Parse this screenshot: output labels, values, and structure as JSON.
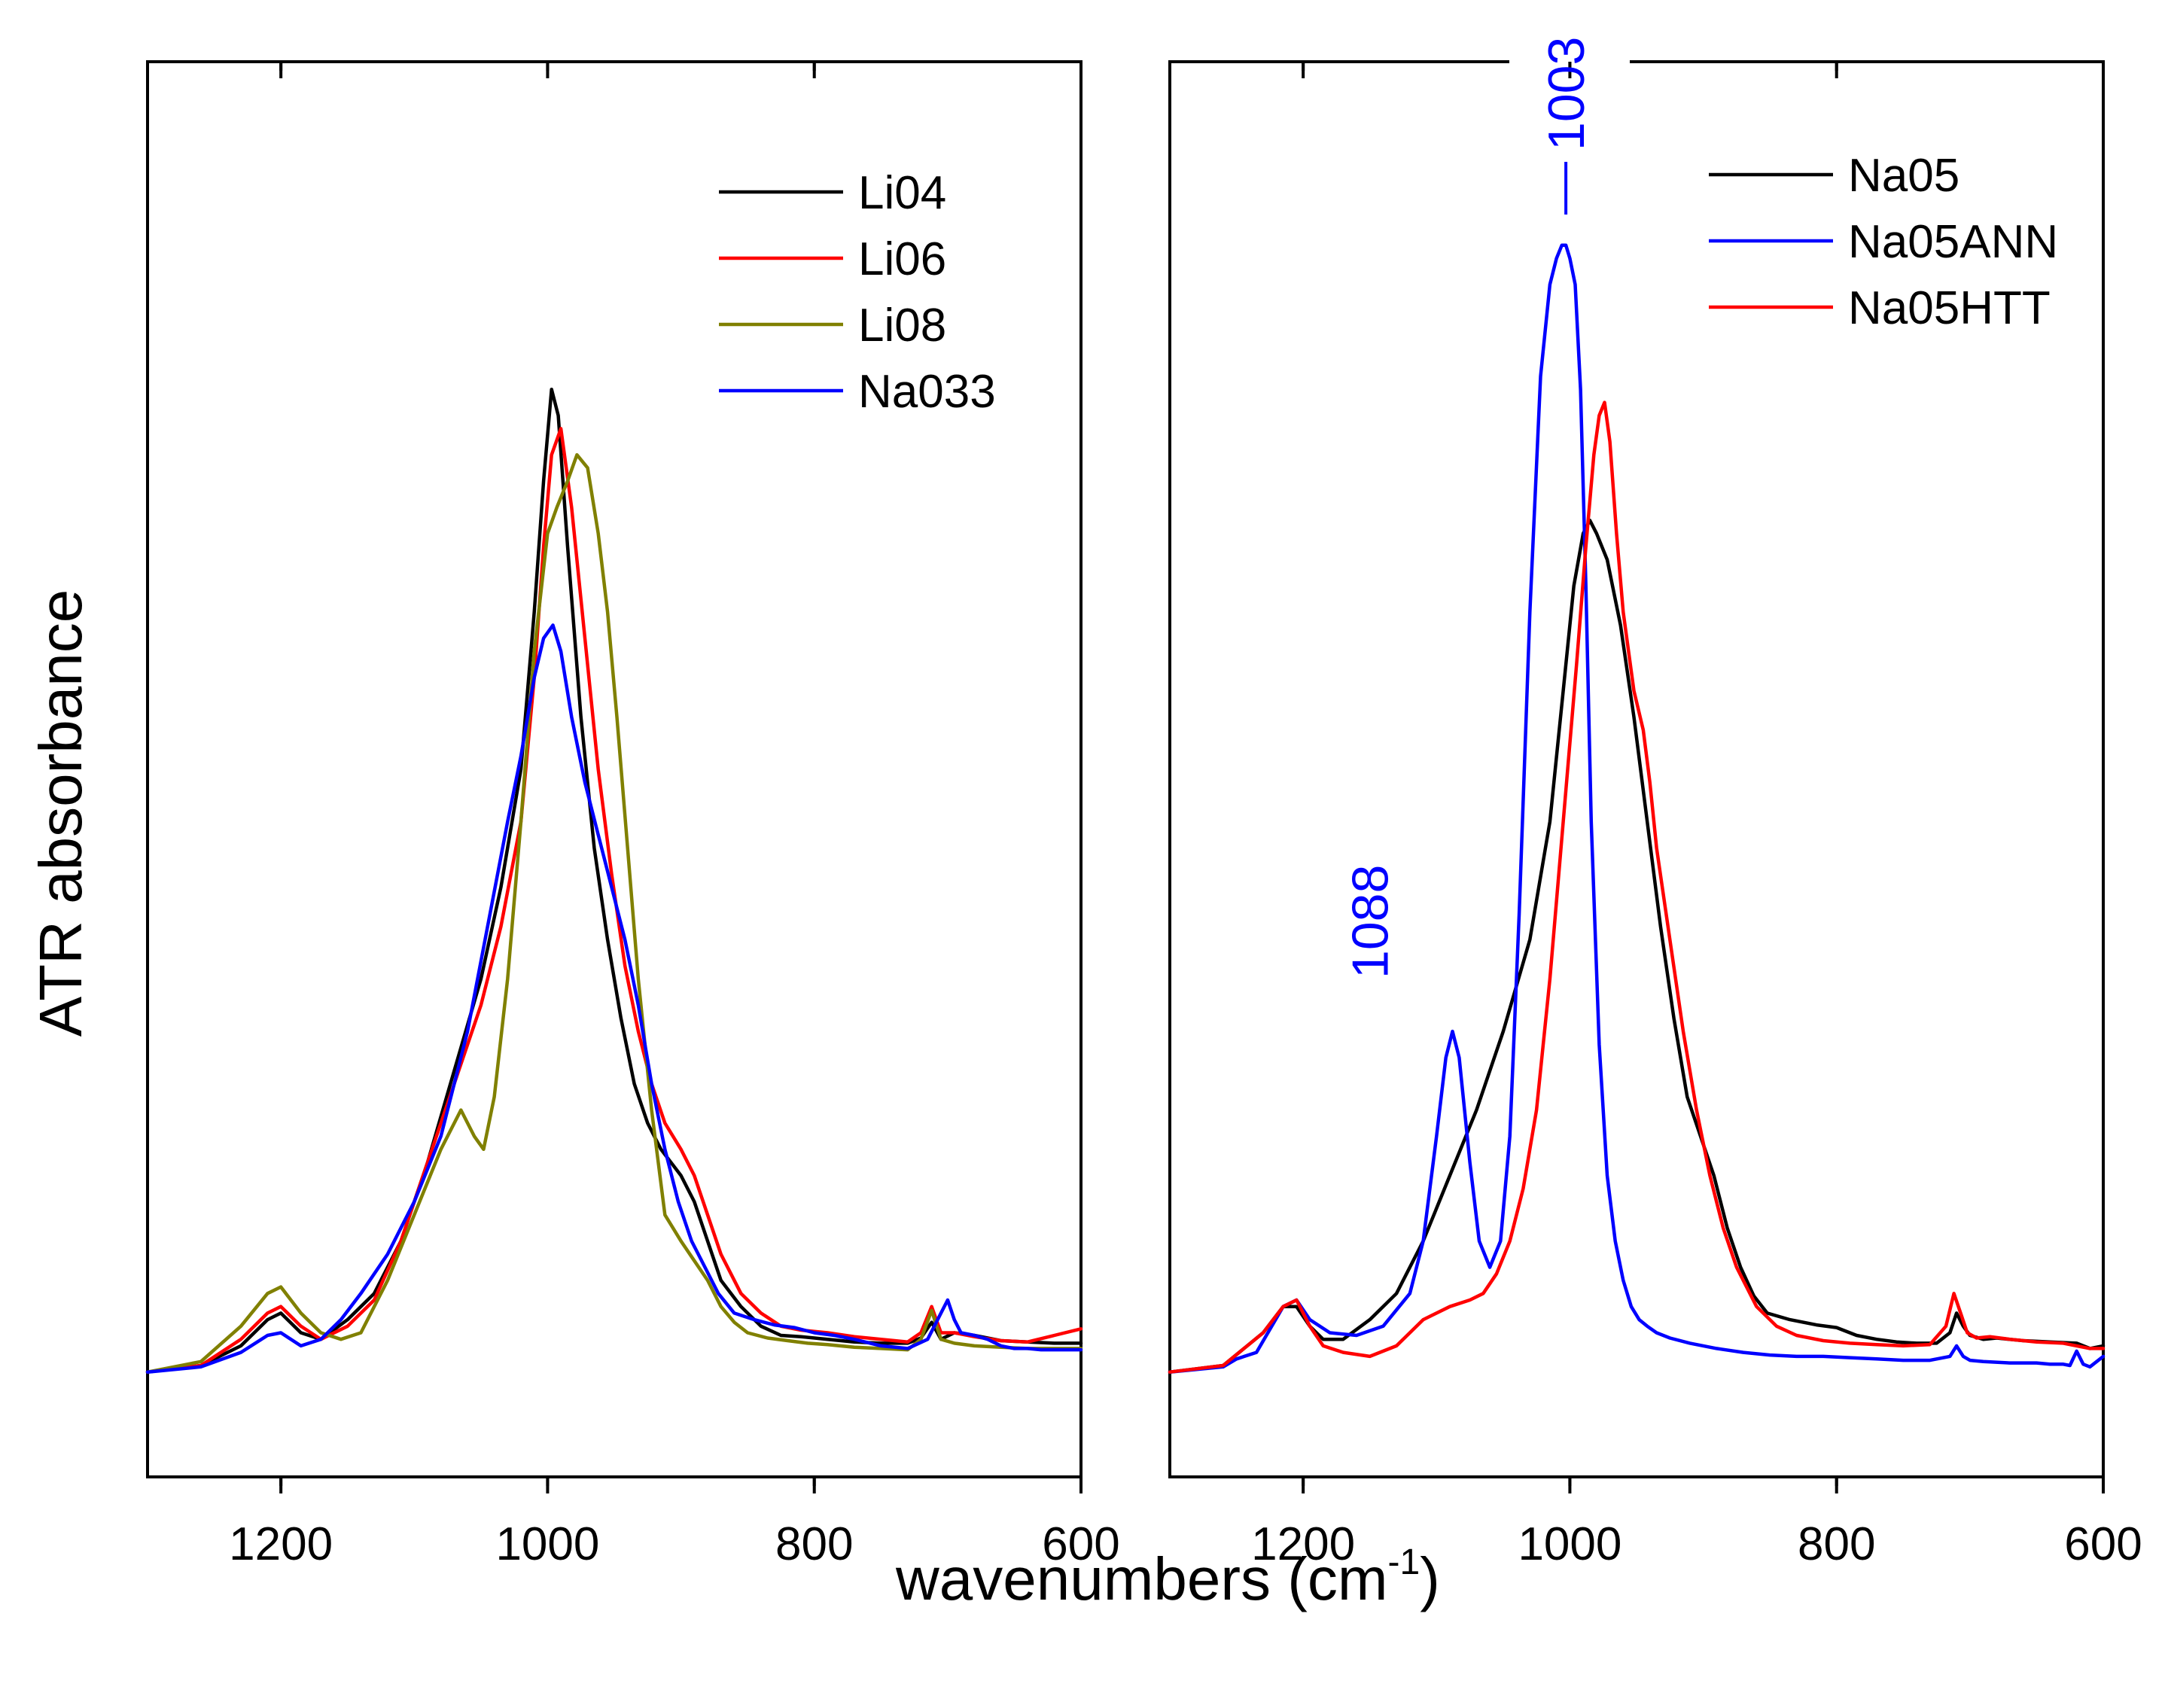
{
  "figure": {
    "ylabel": "ATR absorbance",
    "xlabel_main": "wavenumbers (cm",
    "xlabel_sup": "-1",
    "xlabel_close": ")"
  },
  "chart_data": [
    {
      "type": "line",
      "panel": "left",
      "xlim": [
        1300,
        600
      ],
      "ylim": [
        -0.08,
        1.0
      ],
      "xticks": [
        1200,
        1000,
        800,
        600
      ],
      "xtick_labels": [
        "1200",
        "1000",
        "800",
        "600"
      ],
      "yticks_shown": false,
      "legend": "top-right",
      "series": [
        {
          "name": "Li04",
          "color": "#000000",
          "x": [
            1300,
            1260,
            1230,
            1210,
            1200,
            1185,
            1170,
            1150,
            1130,
            1110,
            1090,
            1070,
            1050,
            1035,
            1020,
            1010,
            1003,
            997,
            992,
            985,
            975,
            965,
            955,
            945,
            935,
            925,
            915,
            900,
            890,
            880,
            870,
            855,
            840,
            825,
            810,
            790,
            770,
            750,
            730,
            720,
            712,
            705,
            695,
            680,
            660,
            640,
            620,
            600
          ],
          "y": [
            0,
            0.005,
            0.02,
            0.04,
            0.045,
            0.03,
            0.025,
            0.04,
            0.06,
            0.1,
            0.16,
            0.23,
            0.3,
            0.37,
            0.46,
            0.58,
            0.68,
            0.75,
            0.73,
            0.63,
            0.5,
            0.4,
            0.33,
            0.27,
            0.22,
            0.19,
            0.17,
            0.15,
            0.13,
            0.1,
            0.07,
            0.05,
            0.035,
            0.028,
            0.027,
            0.025,
            0.023,
            0.022,
            0.022,
            0.026,
            0.038,
            0.025,
            0.03,
            0.028,
            0.024,
            0.023,
            0.022,
            0.022
          ]
        },
        {
          "name": "Li06",
          "color": "#ff0000",
          "x": [
            1300,
            1260,
            1230,
            1210,
            1200,
            1185,
            1170,
            1150,
            1130,
            1110,
            1090,
            1070,
            1050,
            1035,
            1020,
            1010,
            1003,
            997,
            990,
            982,
            972,
            962,
            952,
            942,
            932,
            922,
            912,
            900,
            890,
            880,
            870,
            855,
            840,
            825,
            810,
            790,
            770,
            750,
            730,
            720,
            712,
            705,
            695,
            680,
            660,
            640,
            620,
            600
          ],
          "y": [
            0,
            0.005,
            0.025,
            0.045,
            0.05,
            0.035,
            0.025,
            0.035,
            0.055,
            0.1,
            0.16,
            0.22,
            0.28,
            0.34,
            0.42,
            0.53,
            0.63,
            0.7,
            0.72,
            0.66,
            0.56,
            0.46,
            0.38,
            0.31,
            0.26,
            0.22,
            0.19,
            0.17,
            0.15,
            0.12,
            0.09,
            0.06,
            0.045,
            0.035,
            0.032,
            0.03,
            0.027,
            0.025,
            0.023,
            0.03,
            0.05,
            0.03,
            0.03,
            0.027,
            0.024,
            0.023,
            0.028,
            0.033
          ]
        },
        {
          "name": "Li08",
          "color": "#808000",
          "x": [
            1300,
            1260,
            1230,
            1210,
            1200,
            1185,
            1170,
            1155,
            1140,
            1120,
            1100,
            1080,
            1065,
            1055,
            1048,
            1040,
            1030,
            1020,
            1010,
            1000,
            993,
            985,
            978,
            970,
            962,
            955,
            948,
            940,
            932,
            922,
            912,
            900,
            890,
            880,
            870,
            860,
            850,
            835,
            820,
            805,
            790,
            770,
            750,
            730,
            720,
            712,
            705,
            695,
            680,
            660,
            640,
            620,
            600
          ],
          "y": [
            0,
            0.008,
            0.035,
            0.06,
            0.065,
            0.045,
            0.03,
            0.025,
            0.03,
            0.07,
            0.12,
            0.17,
            0.2,
            0.18,
            0.17,
            0.21,
            0.3,
            0.42,
            0.55,
            0.64,
            0.66,
            0.68,
            0.7,
            0.69,
            0.64,
            0.58,
            0.5,
            0.4,
            0.3,
            0.2,
            0.12,
            0.1,
            0.085,
            0.07,
            0.05,
            0.038,
            0.03,
            0.026,
            0.024,
            0.022,
            0.021,
            0.019,
            0.018,
            0.017,
            0.025,
            0.047,
            0.025,
            0.022,
            0.02,
            0.019,
            0.018,
            0.018,
            0.018
          ]
        },
        {
          "name": "Na033",
          "color": "#0000ff",
          "x": [
            1300,
            1260,
            1230,
            1210,
            1200,
            1185,
            1170,
            1155,
            1140,
            1120,
            1100,
            1080,
            1060,
            1045,
            1030,
            1020,
            1010,
            1003,
            996,
            990,
            982,
            972,
            962,
            952,
            942,
            932,
            922,
            912,
            902,
            892,
            882,
            872,
            860,
            845,
            830,
            815,
            800,
            785,
            770,
            750,
            730,
            715,
            705,
            700,
            695,
            690,
            680,
            670,
            660,
            650,
            640,
            630,
            620,
            610,
            600
          ],
          "y": [
            0,
            0.004,
            0.015,
            0.028,
            0.03,
            0.02,
            0.025,
            0.04,
            0.06,
            0.09,
            0.13,
            0.18,
            0.26,
            0.34,
            0.42,
            0.47,
            0.53,
            0.56,
            0.57,
            0.55,
            0.5,
            0.45,
            0.41,
            0.37,
            0.33,
            0.28,
            0.22,
            0.17,
            0.13,
            0.1,
            0.08,
            0.06,
            0.045,
            0.04,
            0.036,
            0.034,
            0.03,
            0.028,
            0.025,
            0.02,
            0.018,
            0.025,
            0.045,
            0.055,
            0.04,
            0.03,
            0.028,
            0.025,
            0.02,
            0.018,
            0.018,
            0.017,
            0.017,
            0.017,
            0.017
          ]
        }
      ]
    },
    {
      "type": "line",
      "panel": "right",
      "xlim": [
        1300,
        600
      ],
      "ylim": [
        -0.08,
        1.0
      ],
      "xticks": [
        1200,
        1000,
        800,
        600
      ],
      "xtick_labels": [
        "1200",
        "1000",
        "800",
        "600"
      ],
      "yticks_shown": false,
      "legend": "top-right",
      "annotations": [
        {
          "text": "1088",
          "x": 1088
        },
        {
          "text": "1003",
          "x": 1003
        }
      ],
      "series": [
        {
          "name": "Na05",
          "color": "#000000",
          "x": [
            1300,
            1260,
            1230,
            1215,
            1205,
            1195,
            1185,
            1170,
            1150,
            1130,
            1110,
            1090,
            1070,
            1050,
            1030,
            1015,
            1005,
            997,
            990,
            985,
            980,
            972,
            962,
            952,
            942,
            932,
            922,
            912,
            902,
            892,
            882,
            872,
            862,
            852,
            835,
            815,
            800,
            785,
            770,
            755,
            740,
            725,
            715,
            710,
            705,
            700,
            690,
            680,
            660,
            640,
            620,
            610,
            600
          ],
          "y": [
            0,
            0.005,
            0.03,
            0.05,
            0.05,
            0.035,
            0.025,
            0.025,
            0.04,
            0.06,
            0.1,
            0.15,
            0.2,
            0.26,
            0.33,
            0.42,
            0.52,
            0.6,
            0.64,
            0.65,
            0.64,
            0.62,
            0.57,
            0.5,
            0.42,
            0.34,
            0.27,
            0.21,
            0.18,
            0.15,
            0.11,
            0.08,
            0.058,
            0.045,
            0.04,
            0.036,
            0.034,
            0.028,
            0.025,
            0.023,
            0.022,
            0.022,
            0.03,
            0.045,
            0.035,
            0.028,
            0.025,
            0.026,
            0.024,
            0.023,
            0.022,
            0.018,
            0.02
          ]
        },
        {
          "name": "Na05ANN",
          "color": "#0000ff",
          "x": [
            1300,
            1260,
            1250,
            1235,
            1215,
            1205,
            1195,
            1180,
            1160,
            1140,
            1120,
            1110,
            1100,
            1093,
            1088,
            1083,
            1075,
            1068,
            1060,
            1052,
            1045,
            1038,
            1030,
            1022,
            1015,
            1010,
            1006,
            1003,
            1000,
            996,
            992,
            988,
            984,
            978,
            972,
            966,
            960,
            954,
            948,
            942,
            935,
            925,
            910,
            890,
            870,
            850,
            830,
            810,
            790,
            770,
            750,
            730,
            715,
            710,
            705,
            700,
            690,
            670,
            650,
            640,
            630,
            625,
            620,
            615,
            610,
            600
          ],
          "y": [
            0,
            0.004,
            0.01,
            0.015,
            0.05,
            0.055,
            0.04,
            0.03,
            0.028,
            0.035,
            0.06,
            0.1,
            0.18,
            0.24,
            0.26,
            0.24,
            0.16,
            0.1,
            0.08,
            0.1,
            0.18,
            0.35,
            0.58,
            0.76,
            0.83,
            0.85,
            0.86,
            0.86,
            0.85,
            0.83,
            0.75,
            0.6,
            0.42,
            0.25,
            0.15,
            0.1,
            0.07,
            0.05,
            0.04,
            0.035,
            0.03,
            0.026,
            0.022,
            0.018,
            0.015,
            0.013,
            0.012,
            0.012,
            0.011,
            0.01,
            0.009,
            0.009,
            0.012,
            0.02,
            0.012,
            0.009,
            0.008,
            0.007,
            0.007,
            0.006,
            0.006,
            0.005,
            0.016,
            0.006,
            0.004,
            0.012
          ]
        },
        {
          "name": "Na05HTT",
          "color": "#ff0000",
          "x": [
            1300,
            1260,
            1230,
            1215,
            1205,
            1195,
            1185,
            1170,
            1150,
            1130,
            1110,
            1090,
            1075,
            1065,
            1055,
            1045,
            1035,
            1025,
            1015,
            1005,
            995,
            988,
            982,
            978,
            974,
            970,
            965,
            960,
            952,
            945,
            940,
            935,
            925,
            915,
            905,
            895,
            885,
            875,
            860,
            845,
            830,
            810,
            790,
            770,
            750,
            730,
            718,
            712,
            707,
            702,
            695,
            685,
            670,
            650,
            630,
            610,
            600
          ],
          "y": [
            0,
            0.005,
            0.03,
            0.05,
            0.055,
            0.035,
            0.02,
            0.015,
            0.012,
            0.02,
            0.04,
            0.05,
            0.055,
            0.06,
            0.075,
            0.1,
            0.14,
            0.2,
            0.3,
            0.42,
            0.54,
            0.63,
            0.7,
            0.73,
            0.74,
            0.71,
            0.64,
            0.58,
            0.52,
            0.49,
            0.45,
            0.4,
            0.33,
            0.26,
            0.2,
            0.15,
            0.11,
            0.08,
            0.05,
            0.035,
            0.028,
            0.024,
            0.022,
            0.021,
            0.02,
            0.021,
            0.035,
            0.06,
            0.045,
            0.03,
            0.026,
            0.027,
            0.025,
            0.023,
            0.022,
            0.018,
            0.018
          ]
        }
      ]
    }
  ]
}
